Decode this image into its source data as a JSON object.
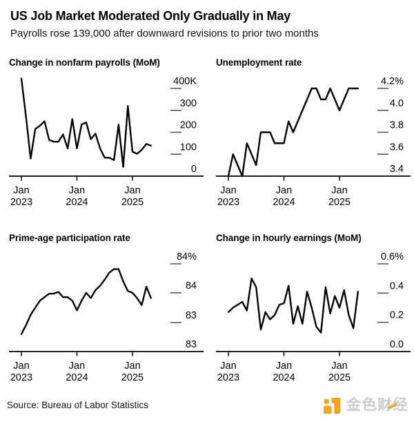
{
  "header": {
    "title": "US Job Market Moderated Only Gradually in May",
    "subtitle": "Payrolls rose 139,000 after downward revisions to prior two months"
  },
  "chart_data": [
    {
      "id": "nonfarm-payrolls",
      "type": "line",
      "title": "Change in nonfarm payrolls (MoM)",
      "frequency": "monthly",
      "x_start": "Jan 2023",
      "x_end": "May 2025",
      "line_color": "#000000",
      "values": [
        445,
        270,
        80,
        215,
        230,
        250,
        165,
        157,
        157,
        190,
        126,
        260,
        126,
        235,
        245,
        168,
        194,
        126,
        84,
        84,
        73,
        235,
        42,
        320,
        111,
        102,
        120,
        147,
        139
      ],
      "y_axis": {
        "ticks": [
          {
            "value": 400,
            "label": "400K"
          },
          {
            "value": 300,
            "label": "300"
          },
          {
            "value": 200,
            "label": "200"
          },
          {
            "value": 100,
            "label": "100"
          },
          {
            "value": 0,
            "label": "0"
          }
        ]
      },
      "x_axis": {
        "ticks": [
          {
            "month_index": 0,
            "line1": "Jan",
            "line2": "2023"
          },
          {
            "month_index": 12,
            "line1": "Jan",
            "line2": "2024"
          },
          {
            "month_index": 24,
            "line1": "Jan",
            "line2": "2025"
          }
        ]
      }
    },
    {
      "id": "unemployment-rate",
      "type": "line",
      "title": "Unemployment rate",
      "frequency": "monthly",
      "x_start": "Jan 2023",
      "x_end": "May 2025",
      "line_color": "#000000",
      "values": [
        3.4,
        3.6,
        3.5,
        3.4,
        3.7,
        3.6,
        3.5,
        3.8,
        3.8,
        3.8,
        3.7,
        3.7,
        3.7,
        3.9,
        3.8,
        3.9,
        4.0,
        4.1,
        4.2,
        4.2,
        4.1,
        4.1,
        4.2,
        4.1,
        4.0,
        4.1,
        4.2,
        4.2,
        4.2
      ],
      "y_axis": {
        "ticks": [
          {
            "value": 4.2,
            "label": "4.2%"
          },
          {
            "value": 4.0,
            "label": "4.0"
          },
          {
            "value": 3.8,
            "label": "3.8"
          },
          {
            "value": 3.6,
            "label": "3.6"
          },
          {
            "value": 3.4,
            "label": "3.4"
          }
        ]
      },
      "x_axis": {
        "ticks": [
          {
            "month_index": 0,
            "line1": "Jan",
            "line2": "2023"
          },
          {
            "month_index": 12,
            "line1": "Jan",
            "line2": "2024"
          },
          {
            "month_index": 24,
            "line1": "Jan",
            "line2": "2025"
          }
        ]
      }
    },
    {
      "id": "prime-age-participation",
      "type": "line",
      "title": "Prime-age participation rate",
      "frequency": "monthly",
      "x_start": "Jan 2023",
      "x_end": "May 2025",
      "line_color": "#000000",
      "values": [
        83.2,
        83.3,
        83.42,
        83.5,
        83.58,
        83.62,
        83.66,
        83.66,
        83.68,
        83.62,
        83.62,
        83.58,
        83.47,
        83.58,
        83.67,
        83.61,
        83.7,
        83.75,
        83.82,
        83.9,
        83.94,
        83.94,
        83.8,
        83.69,
        83.67,
        83.61,
        83.53,
        83.74,
        83.61
      ],
      "y_axis": {
        "ticks": [
          {
            "value": 84.0,
            "label": "84%"
          },
          {
            "value": 83.67,
            "label": "84"
          },
          {
            "value": 83.33,
            "label": "83"
          },
          {
            "value": 83.0,
            "label": "83"
          }
        ]
      },
      "x_axis": {
        "ticks": [
          {
            "month_index": 0,
            "line1": "Jan",
            "line2": "2023"
          },
          {
            "month_index": 12,
            "line1": "Jan",
            "line2": "2024"
          },
          {
            "month_index": 24,
            "line1": "Jan",
            "line2": "2025"
          }
        ]
      }
    },
    {
      "id": "hourly-earnings",
      "type": "line",
      "title": "Change in hourly earnings (MoM)",
      "frequency": "monthly",
      "x_start": "Jan 2023",
      "x_end": "May 2025",
      "line_color": "#000000",
      "values": [
        0.27,
        0.3,
        0.32,
        0.34,
        0.28,
        0.5,
        0.44,
        0.15,
        0.27,
        0.22,
        0.25,
        0.32,
        0.33,
        0.45,
        0.19,
        0.31,
        0.19,
        0.41,
        0.3,
        0.17,
        0.13,
        0.44,
        0.26,
        0.38,
        0.3,
        0.42,
        0.25,
        0.16,
        0.41
      ],
      "y_axis": {
        "ticks": [
          {
            "value": 0.6,
            "label": "0.6%"
          },
          {
            "value": 0.4,
            "label": "0.4"
          },
          {
            "value": 0.2,
            "label": "0.2"
          },
          {
            "value": 0.0,
            "label": "0.0"
          }
        ]
      },
      "x_axis": {
        "ticks": [
          {
            "month_index": 0,
            "line1": "Jan",
            "line2": "2023"
          },
          {
            "month_index": 12,
            "line1": "Jan",
            "line2": "2024"
          },
          {
            "month_index": 24,
            "line1": "Jan",
            "line2": "2025"
          }
        ]
      }
    }
  ],
  "footer": {
    "source": "Source: Bureau of Labor Statistics",
    "brand": {
      "name": "金色财经",
      "accent_color": "#F5A41F",
      "text_color": "#C9CBCD"
    }
  },
  "style": {
    "line_color": "#000000",
    "axis_color": "#000000",
    "tick_dash_color": "#4d4d4d",
    "background": "#ffffff"
  }
}
